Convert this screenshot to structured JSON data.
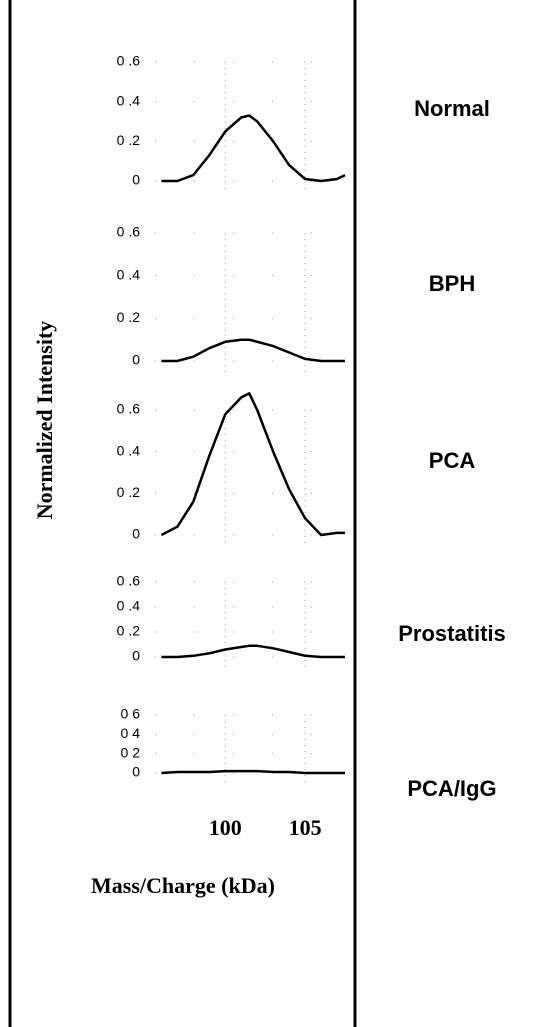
{
  "chart_data": {
    "type": "line",
    "y_label": "Normalized Intensity",
    "x_label": "Mass/Charge (kDa)",
    "x": [
      96,
      97,
      98,
      99,
      100,
      101,
      101.5,
      102,
      103,
      104,
      105,
      106,
      107,
      107.5
    ],
    "xlim": [
      95.6,
      107.5
    ],
    "xticks": [
      100,
      105
    ],
    "grid": true,
    "color": "#000000",
    "panels": [
      {
        "name": "Normal",
        "ylim": [
          0,
          0.6
        ],
        "yticks": [
          {
            "value": 0.6,
            "label": "0 .6"
          },
          {
            "value": 0.4,
            "label": "0 .4"
          },
          {
            "value": 0.2,
            "label": "0 .2"
          },
          0
        ],
        "values": [
          0.0,
          0.0,
          0.03,
          0.13,
          0.25,
          0.32,
          0.33,
          0.3,
          0.2,
          0.08,
          0.01,
          0.0,
          0.01,
          0.03
        ]
      },
      {
        "name": "BPH",
        "ylim": [
          0,
          0.6
        ],
        "yticks": [
          {
            "value": 0.6,
            "label": "0 .6"
          },
          {
            "value": 0.4,
            "label": "0 .4"
          },
          {
            "value": 0.2,
            "label": "0 .2"
          },
          0
        ],
        "values": [
          0.0,
          0.0,
          0.02,
          0.06,
          0.09,
          0.1,
          0.1,
          0.09,
          0.07,
          0.04,
          0.01,
          0.0,
          0.0,
          0.0
        ]
      },
      {
        "name": "PCA",
        "ylim": [
          0,
          0.6
        ],
        "yticks": [
          {
            "value": 0.6,
            "label": "0 .6"
          },
          {
            "value": 0.4,
            "label": "0 .4"
          },
          {
            "value": 0.2,
            "label": "0 .2"
          },
          0
        ],
        "values": [
          0.0,
          0.04,
          0.16,
          0.38,
          0.58,
          0.66,
          0.68,
          0.6,
          0.4,
          0.22,
          0.08,
          0.0,
          0.01,
          0.01
        ]
      },
      {
        "name": "Prostatitis",
        "ylim": [
          0,
          0.6
        ],
        "yticks": [
          {
            "value": 0.6,
            "label": "0 .6"
          },
          {
            "value": 0.4,
            "label": "0 .4"
          },
          {
            "value": 0.2,
            "label": "0 .2"
          },
          0
        ],
        "values": [
          0.0,
          0.0,
          0.01,
          0.03,
          0.06,
          0.08,
          0.09,
          0.09,
          0.07,
          0.04,
          0.01,
          0.0,
          0.0,
          0.0
        ]
      },
      {
        "name": "PCA/IgG",
        "ylim": [
          0,
          0.6
        ],
        "yticks": [
          {
            "value": 0.6,
            "label": "0 6"
          },
          {
            "value": 0.4,
            "label": "0 4"
          },
          {
            "value": 0.2,
            "label": "0 2"
          },
          0
        ],
        "values": [
          0.0,
          0.01,
          0.01,
          0.01,
          0.02,
          0.02,
          0.02,
          0.02,
          0.01,
          0.01,
          0.0,
          0.0,
          0.0,
          0.0
        ]
      }
    ]
  }
}
